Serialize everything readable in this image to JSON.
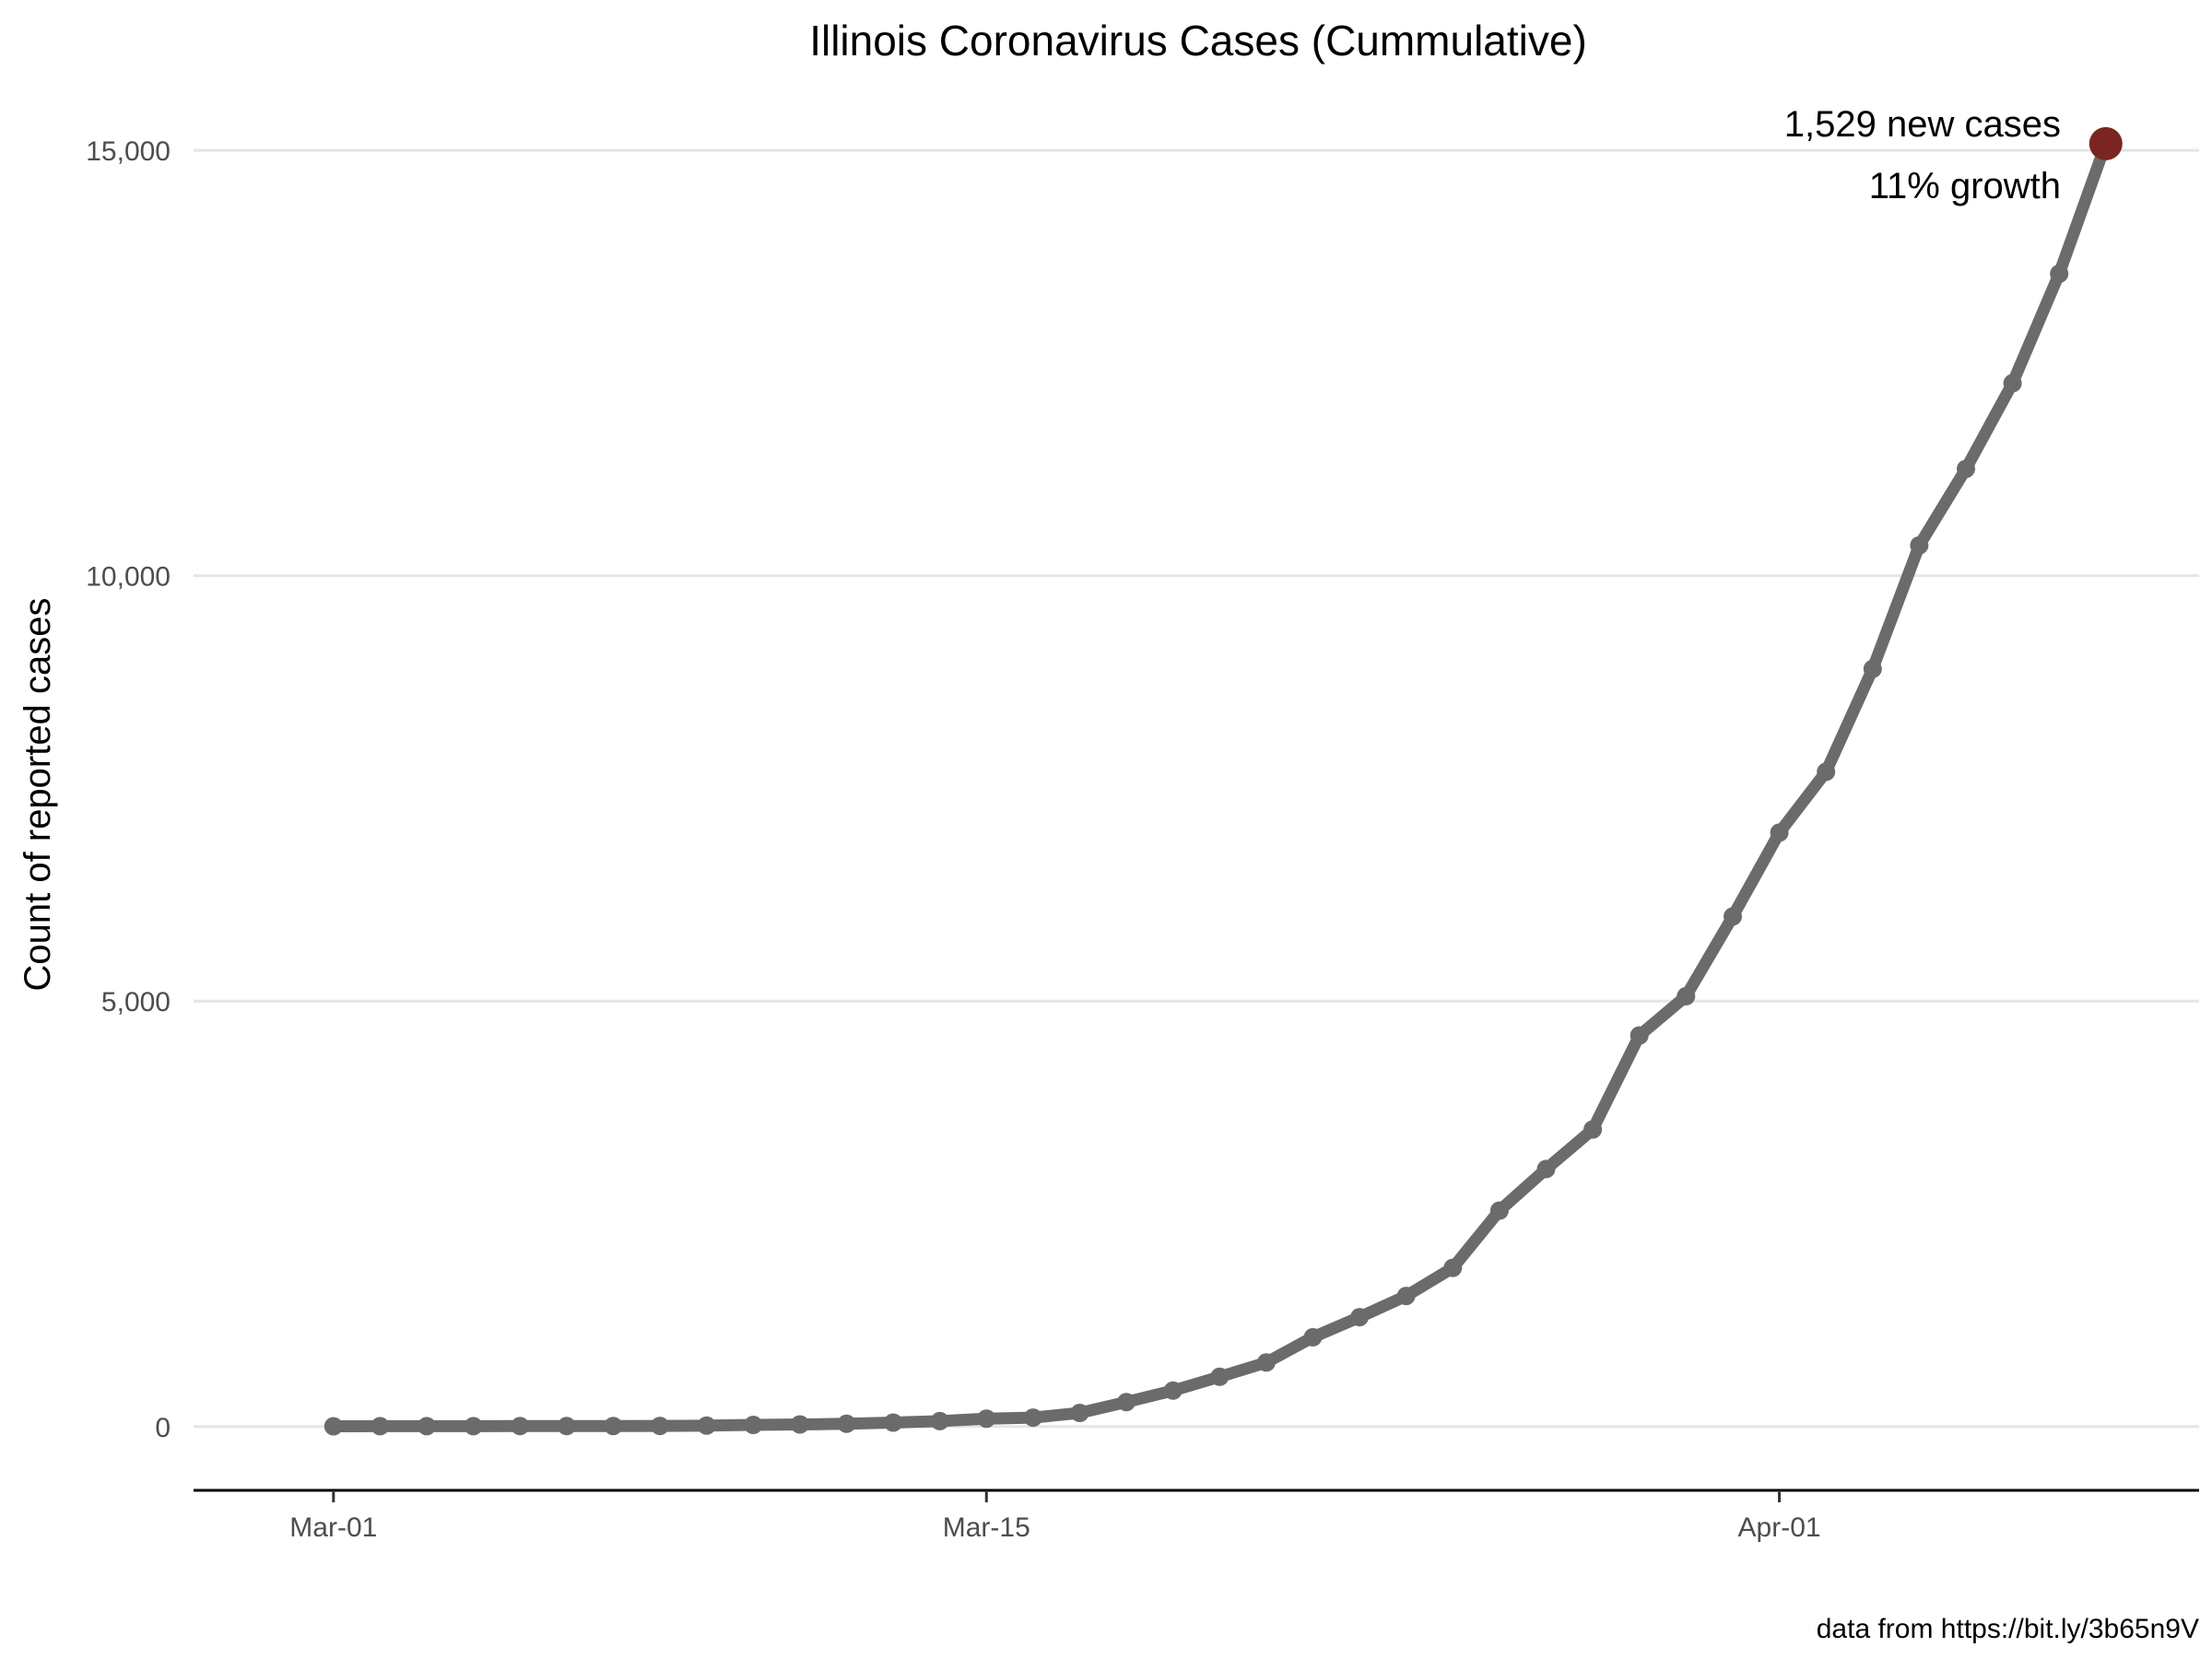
{
  "chart_data": {
    "type": "line",
    "title": "Illinois Coronavirus Cases (Cummulative)",
    "xlabel": "",
    "ylabel": "Count of reported cases",
    "caption": "data from https://bit.ly/3b65n9V",
    "x_ticks": [
      "Mar-01",
      "Mar-15",
      "Apr-01"
    ],
    "y_ticks": [
      {
        "value": 0,
        "label": "0"
      },
      {
        "value": 5000,
        "label": "5,000"
      },
      {
        "value": 10000,
        "label": "10,000"
      },
      {
        "value": 15000,
        "label": "15,000"
      }
    ],
    "ylim": [
      -750,
      15900
    ],
    "x_range": [
      "2020-02-27",
      "2020-04-10"
    ],
    "grid": {
      "horizontal": true,
      "vertical": false
    },
    "line_color": "#6b6b6b",
    "highlight_color": "#7b2522",
    "annotation": {
      "line1": "1,529 new cases",
      "line2": "11% growth"
    },
    "x": [
      "2020-03-01",
      "2020-03-02",
      "2020-03-03",
      "2020-03-04",
      "2020-03-05",
      "2020-03-06",
      "2020-03-07",
      "2020-03-08",
      "2020-03-09",
      "2020-03-10",
      "2020-03-11",
      "2020-03-12",
      "2020-03-13",
      "2020-03-14",
      "2020-03-15",
      "2020-03-16",
      "2020-03-17",
      "2020-03-18",
      "2020-03-19",
      "2020-03-20",
      "2020-03-21",
      "2020-03-22",
      "2020-03-23",
      "2020-03-24",
      "2020-03-25",
      "2020-03-26",
      "2020-03-27",
      "2020-03-28",
      "2020-03-29",
      "2020-03-30",
      "2020-03-31",
      "2020-04-01",
      "2020-04-02",
      "2020-04-03",
      "2020-04-04",
      "2020-04-05",
      "2020-04-06",
      "2020-04-07",
      "2020-04-08"
    ],
    "values": [
      3,
      4,
      4,
      4,
      5,
      5,
      6,
      7,
      11,
      19,
      25,
      32,
      46,
      64,
      93,
      105,
      160,
      288,
      422,
      585,
      753,
      1049,
      1285,
      1535,
      1865,
      2538,
      3026,
      3491,
      4596,
      5057,
      5994,
      6980,
      7695,
      8904,
      10357,
      11256,
      12262,
      13549,
      15078
    ]
  }
}
